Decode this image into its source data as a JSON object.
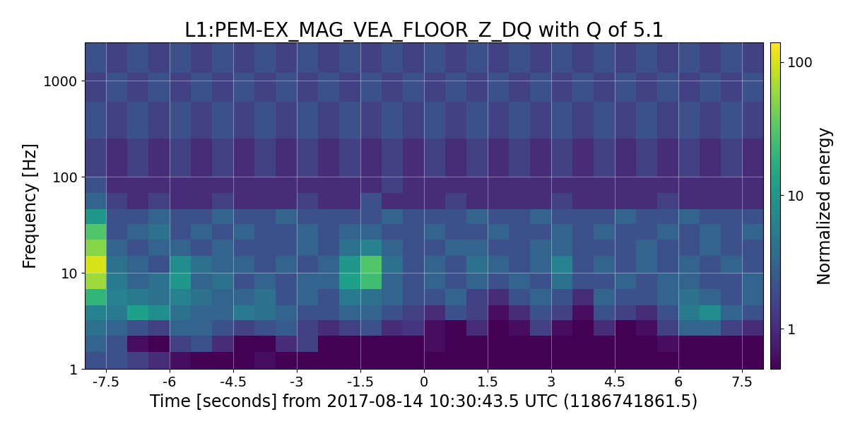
{
  "chart_data": {
    "type": "heatmap",
    "title": "L1:PEM-EX_MAG_VEA_FLOOR_Z_DQ with Q of 5.1",
    "x_label": "Time [seconds] from 2017-08-14 10:30:43.5 UTC (1186741861.5)",
    "y_label": "Frequency [Hz]",
    "xlim": [
      -8,
      8
    ],
    "xticks": [
      -7.5,
      -6,
      -4.5,
      -3,
      -1.5,
      0,
      1.5,
      3,
      4.5,
      6,
      7.5
    ],
    "ylim": [
      1,
      2500
    ],
    "yticks": [
      1,
      10,
      100,
      1000
    ],
    "log": "y",
    "grid": true,
    "color": "viridis",
    "time_bins": [
      -8,
      -7.5,
      -7,
      -6.5,
      -6,
      -5.5,
      -5,
      -4.5,
      -4,
      -3.5,
      -3,
      -2.5,
      -2,
      -1.5,
      -1,
      -0.5,
      0,
      0.5,
      1,
      1.5,
      2,
      2.5,
      3,
      3.5,
      4,
      4.5,
      5,
      5.5,
      6,
      6.5,
      7,
      7.5,
      8
    ],
    "frequency_bins": [
      1,
      1.5,
      2.2,
      3.2,
      4.6,
      6.8,
      10,
      15,
      22,
      32,
      46,
      68,
      100,
      250,
      600,
      1200,
      2500
    ],
    "cells": [
      [
        2,
        2,
        1.5,
        1,
        0.6,
        0.5,
        0.5,
        0.5,
        0.6,
        0.5,
        0.5,
        0.5,
        0.5,
        0.5,
        0.5,
        0.5,
        0.5,
        0.5,
        0.5,
        0.5,
        0.5,
        0.5,
        0.5,
        0.5,
        0.5,
        0.5,
        0.5,
        0.5,
        0.5,
        0.5,
        0.5,
        0.5
      ],
      [
        3,
        2,
        0.6,
        0.5,
        1.5,
        2,
        1,
        0.5,
        0.5,
        1,
        1.5,
        0.5,
        0.5,
        0.5,
        0.5,
        0.5,
        0.6,
        0.5,
        0.5,
        0.5,
        0.5,
        0.5,
        0.5,
        0.5,
        0.5,
        0.5,
        0.5,
        0.6,
        0.5,
        0.5,
        0.5,
        0.5
      ],
      [
        4,
        3,
        2,
        1.5,
        3,
        3,
        2,
        1.5,
        2,
        2.5,
        1.5,
        1,
        1.5,
        2,
        1,
        1.2,
        0.6,
        0.5,
        1,
        0.5,
        0.6,
        1.5,
        0.6,
        0.5,
        1,
        0.5,
        0.6,
        1.5,
        3,
        3,
        1.5,
        1
      ],
      [
        6,
        5,
        12,
        8,
        4,
        3,
        3,
        5,
        4,
        3,
        2,
        2,
        3,
        3,
        2,
        1.5,
        1,
        2,
        1.5,
        0.6,
        1,
        2,
        1.5,
        0.6,
        2,
        1.5,
        1,
        2,
        5,
        8,
        3,
        2
      ],
      [
        20,
        6,
        5,
        4,
        6,
        4,
        3,
        3,
        4,
        2,
        3,
        2,
        5,
        4,
        3,
        2,
        2,
        3,
        1.5,
        1,
        2,
        3,
        2,
        1,
        3,
        2,
        2,
        3,
        4,
        3,
        2,
        3
      ],
      [
        60,
        5,
        3,
        4,
        10,
        3,
        4,
        2,
        3,
        2,
        3,
        3,
        12,
        25,
        3,
        2,
        3,
        2,
        3,
        2,
        3,
        2,
        4,
        2,
        2,
        3,
        2,
        3,
        3,
        2,
        2,
        3
      ],
      [
        100,
        4,
        3,
        2,
        8,
        4,
        3,
        3,
        2,
        3,
        2,
        3,
        10,
        30,
        4,
        2,
        3,
        2,
        4,
        3,
        2,
        3,
        6,
        2,
        3,
        2,
        3,
        2,
        3,
        2,
        3,
        2
      ],
      [
        50,
        3,
        2,
        3,
        3,
        2,
        3,
        2,
        2,
        2,
        3,
        2,
        4,
        6,
        3,
        2,
        2,
        3,
        3,
        2,
        2,
        3,
        3,
        2,
        2,
        2,
        3,
        2,
        2,
        3,
        2,
        2
      ],
      [
        30,
        2,
        3,
        4,
        2,
        3,
        2,
        3,
        2,
        2,
        3,
        2,
        3,
        3,
        2,
        2,
        3,
        2,
        2,
        3,
        2,
        2,
        3,
        2,
        3,
        2,
        2,
        3,
        2,
        3,
        2,
        3
      ],
      [
        10,
        2,
        2,
        3,
        2,
        2,
        3,
        2,
        2,
        3,
        2,
        2,
        2,
        2,
        3,
        2,
        2,
        2,
        3,
        2,
        2,
        3,
        2,
        2,
        2,
        3,
        2,
        2,
        3,
        2,
        2,
        2
      ],
      [
        3,
        1.5,
        1,
        1.5,
        1,
        1,
        1.5,
        1,
        1,
        1,
        1.5,
        1,
        1,
        2,
        1,
        1,
        1,
        1.5,
        1,
        1,
        1,
        1,
        1.5,
        1,
        1,
        1,
        1,
        1.5,
        1,
        1,
        1,
        1
      ],
      [
        2,
        1,
        1,
        1,
        1,
        1,
        1,
        1,
        1,
        1,
        1,
        1,
        1,
        1,
        1.5,
        1,
        1,
        1,
        1,
        1,
        1,
        1,
        1,
        1,
        1,
        1,
        1,
        1,
        1,
        1,
        1,
        1
      ],
      [
        1.5,
        1,
        1.5,
        1,
        1.5,
        1,
        1.5,
        1,
        1.5,
        1,
        1.5,
        1,
        1.5,
        1,
        1.5,
        1,
        1.5,
        1,
        1.5,
        1,
        1.5,
        1,
        1.5,
        1,
        1.5,
        1,
        1.5,
        1,
        1.5,
        1,
        1.5,
        1
      ],
      [
        2,
        1.5,
        2,
        1.5,
        2,
        1.5,
        2,
        1.5,
        2,
        1.5,
        2,
        1.5,
        2,
        1.5,
        2,
        1.5,
        2,
        1.5,
        2,
        1.5,
        2,
        1.5,
        2,
        1.5,
        2,
        1.5,
        2,
        1.5,
        2,
        1.5,
        2,
        1.5
      ],
      [
        1.5,
        2,
        1.5,
        2,
        1.5,
        2,
        1.5,
        2,
        1.5,
        2,
        1.5,
        2,
        1.5,
        2,
        1.5,
        2,
        1.5,
        2,
        1.5,
        2,
        1.5,
        2,
        1.5,
        2,
        1.5,
        2,
        1.5,
        2,
        1.5,
        2,
        1.5,
        2
      ],
      [
        2,
        1.5,
        2,
        1.5,
        2,
        1.5,
        2,
        1.5,
        2,
        1.5,
        2,
        1.5,
        2,
        1.5,
        2,
        1.5,
        2,
        1.5,
        2,
        1.5,
        2,
        1.5,
        2,
        1.5,
        2,
        1.5,
        2,
        1.5,
        2,
        1.5,
        2,
        1.5
      ]
    ],
    "colorbar": {
      "label": "Normalized energy",
      "range": [
        0.5,
        140
      ],
      "ticks": [
        1,
        10,
        100
      ]
    }
  }
}
